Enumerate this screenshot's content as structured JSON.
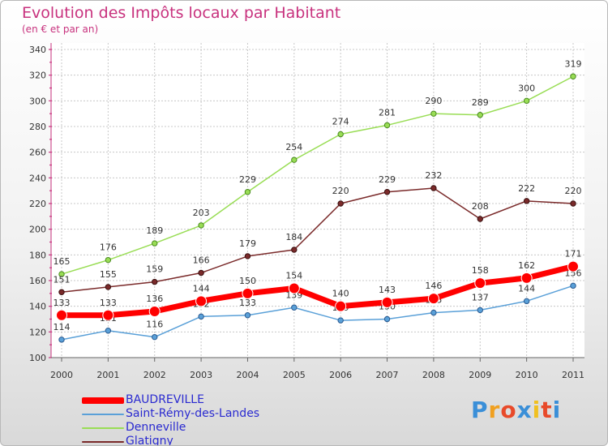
{
  "header": {
    "title": "Evolution des Impôts locaux par Habitant",
    "subtitle": "(en € et par an)"
  },
  "logo": {
    "text": "Proxiti",
    "colors": [
      "#3a8fd8",
      "#f0a020",
      "#e84a2a",
      "#3a8fd8",
      "#f0c020",
      "#e84a2a",
      "#3a8fd8"
    ]
  },
  "chart_data": {
    "type": "line",
    "title": "Evolution des Impôts locaux par Habitant",
    "subtitle": "(en € et par an)",
    "xlabel": "",
    "ylabel": "",
    "x": [
      "2000",
      "2001",
      "2002",
      "2003",
      "2004",
      "2005",
      "2006",
      "2007",
      "2008",
      "2009",
      "2010",
      "2011"
    ],
    "ylim": [
      100,
      340
    ],
    "yticks": [
      100,
      120,
      140,
      160,
      180,
      200,
      220,
      240,
      260,
      280,
      300,
      320,
      340
    ],
    "grid": true,
    "legend_position": "bottom-left",
    "series": [
      {
        "name": "Denneville",
        "color": "#99dd55",
        "values": [
          165,
          176,
          189,
          203,
          229,
          254,
          274,
          281,
          290,
          289,
          300,
          319
        ]
      },
      {
        "name": "Glatigny",
        "color": "#7a2a2a",
        "values": [
          151,
          155,
          159,
          166,
          179,
          184,
          220,
          229,
          232,
          208,
          222,
          220
        ]
      },
      {
        "name": "Saint-Rémy-des-Landes",
        "color": "#5aa0d8",
        "values": [
          114,
          121,
          116,
          132,
          133,
          139,
          129,
          130,
          135,
          137,
          144,
          156
        ]
      },
      {
        "name": "BAUDREVILLE",
        "color": "#ff0000",
        "values": [
          133,
          133,
          136,
          144,
          150,
          154,
          140,
          143,
          146,
          158,
          162,
          171
        ]
      }
    ],
    "legend_order": [
      "BAUDREVILLE",
      "Saint-Rémy-des-Landes",
      "Denneville",
      "Glatigny"
    ]
  }
}
